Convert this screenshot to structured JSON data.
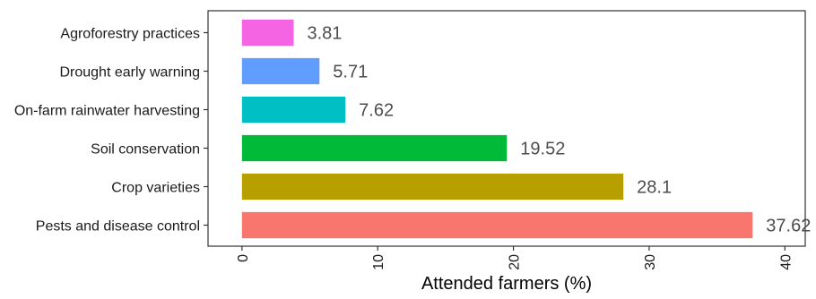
{
  "chart_data": {
    "type": "bar",
    "orientation": "horizontal",
    "categories": [
      "Pests and disease control",
      "Crop varieties",
      "Soil conservation",
      "On-farm rainwater harvesting",
      "Drought early warning",
      "Agroforestry practices"
    ],
    "values": [
      37.62,
      28.1,
      19.52,
      7.62,
      5.71,
      3.81
    ],
    "data_labels": [
      "37.62",
      "28.1",
      "19.52",
      "7.62",
      "5.71",
      "3.81"
    ],
    "colors": [
      "#F8766D",
      "#B79F00",
      "#00BA38",
      "#00BFC4",
      "#619CFF",
      "#F564E3"
    ],
    "xlabel": "Attended farmers (%)",
    "ylabel": "",
    "xlim": [
      -2.5,
      41.5
    ],
    "xticks": [
      0,
      10,
      20,
      30,
      40
    ],
    "tick_labels": [
      "0",
      "10",
      "20",
      "30",
      "40"
    ],
    "grid": false,
    "legend": "none"
  }
}
